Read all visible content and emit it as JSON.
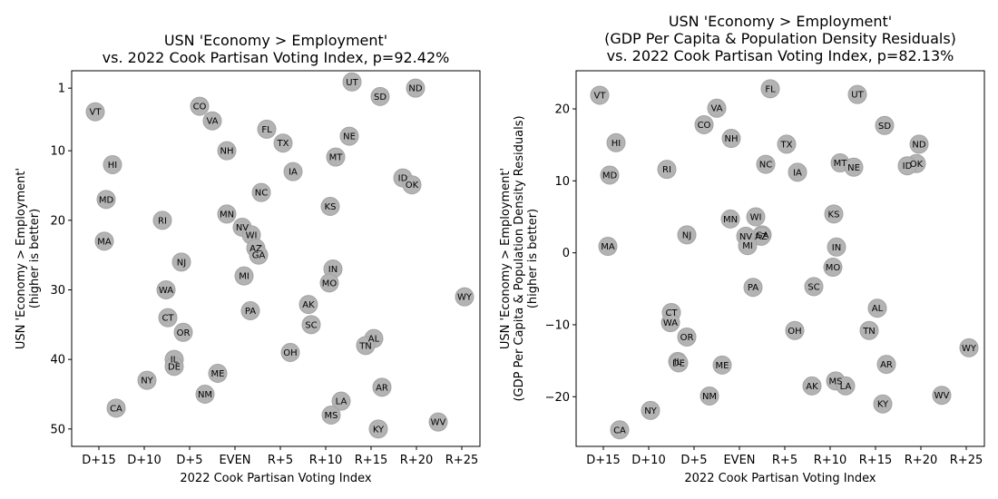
{
  "chart_data": [
    {
      "type": "scatter",
      "title": [
        "USN 'Economy > Employment'",
        "vs. 2022 Cook Partisan Voting Index, p=92.42%"
      ],
      "xlabel": "2022 Cook Partisan Voting Index",
      "ylabel": [
        "USN 'Economy > Employment'",
        "(higher is better)"
      ],
      "xlim": [
        -18,
        27
      ],
      "ylim": [
        52.5,
        -1.5
      ],
      "y_inverted": true,
      "grid": false,
      "x_ticks": [
        {
          "value": -15,
          "label": "D+15"
        },
        {
          "value": -10,
          "label": "D+10"
        },
        {
          "value": -5,
          "label": "D+5"
        },
        {
          "value": 0,
          "label": "EVEN"
        },
        {
          "value": 5,
          "label": "R+5"
        },
        {
          "value": 10,
          "label": "R+10"
        },
        {
          "value": 15,
          "label": "R+15"
        },
        {
          "value": 20,
          "label": "R+20"
        },
        {
          "value": 25,
          "label": "R+25"
        }
      ],
      "y_ticks": [
        {
          "value": 1,
          "label": "1"
        },
        {
          "value": 10,
          "label": "10"
        },
        {
          "value": 20,
          "label": "20"
        },
        {
          "value": 30,
          "label": "30"
        },
        {
          "value": 40,
          "label": "40"
        },
        {
          "value": 50,
          "label": "50"
        }
      ],
      "marker_color": "#b3b3b3",
      "points": [
        {
          "label": "VT",
          "x": -15.4,
          "y": 4.4
        },
        {
          "label": "CO",
          "x": -3.9,
          "y": 3.6
        },
        {
          "label": "VA",
          "x": -2.5,
          "y": 5.7
        },
        {
          "label": "UT",
          "x": 12.9,
          "y": 0.1
        },
        {
          "label": "SD",
          "x": 16.0,
          "y": 2.2
        },
        {
          "label": "ND",
          "x": 19.9,
          "y": 1.0
        },
        {
          "label": "FL",
          "x": 3.5,
          "y": 6.9
        },
        {
          "label": "NE",
          "x": 12.6,
          "y": 7.9
        },
        {
          "label": "TX",
          "x": 5.3,
          "y": 8.9
        },
        {
          "label": "NH",
          "x": -0.9,
          "y": 10.0
        },
        {
          "label": "MT",
          "x": 11.1,
          "y": 10.9
        },
        {
          "label": "HI",
          "x": -13.5,
          "y": 12.0
        },
        {
          "label": "IA",
          "x": 6.4,
          "y": 13.0
        },
        {
          "label": "ID",
          "x": 18.5,
          "y": 13.9
        },
        {
          "label": "OK",
          "x": 19.5,
          "y": 14.9
        },
        {
          "label": "NC",
          "x": 2.9,
          "y": 16.0
        },
        {
          "label": "MD",
          "x": -14.2,
          "y": 17.0
        },
        {
          "label": "KS",
          "x": 10.5,
          "y": 18.0
        },
        {
          "label": "MN",
          "x": -0.9,
          "y": 19.1
        },
        {
          "label": "RI",
          "x": -8.0,
          "y": 20.0
        },
        {
          "label": "NV",
          "x": 0.8,
          "y": 21.0
        },
        {
          "label": "WI",
          "x": 1.8,
          "y": 22.1
        },
        {
          "label": "MA",
          "x": -14.4,
          "y": 23.0
        },
        {
          "label": "AZ",
          "x": 2.3,
          "y": 24.0
        },
        {
          "label": "GA",
          "x": 2.6,
          "y": 25.0
        },
        {
          "label": "NJ",
          "x": -5.9,
          "y": 26.0
        },
        {
          "label": "IN",
          "x": 10.8,
          "y": 27.0
        },
        {
          "label": "MI",
          "x": 1.0,
          "y": 28.0
        },
        {
          "label": "MO",
          "x": 10.4,
          "y": 29.0
        },
        {
          "label": "WA",
          "x": -7.6,
          "y": 30.0
        },
        {
          "label": "WY",
          "x": 25.3,
          "y": 31.0
        },
        {
          "label": "AK",
          "x": 8.1,
          "y": 32.1
        },
        {
          "label": "PA",
          "x": 1.7,
          "y": 33.0
        },
        {
          "label": "CT",
          "x": -7.4,
          "y": 34.0
        },
        {
          "label": "SC",
          "x": 8.4,
          "y": 35.0
        },
        {
          "label": "OR",
          "x": -5.7,
          "y": 36.1
        },
        {
          "label": "AL",
          "x": 15.3,
          "y": 37.0
        },
        {
          "label": "TN",
          "x": 14.4,
          "y": 38.0
        },
        {
          "label": "OH",
          "x": 6.1,
          "y": 39.0
        },
        {
          "label": "IL",
          "x": -6.7,
          "y": 40.0
        },
        {
          "label": "DE",
          "x": -6.7,
          "y": 41.0
        },
        {
          "label": "ME",
          "x": -1.9,
          "y": 42.0
        },
        {
          "label": "NY",
          "x": -9.7,
          "y": 43.0
        },
        {
          "label": "AR",
          "x": 16.2,
          "y": 44.0
        },
        {
          "label": "NM",
          "x": -3.3,
          "y": 45.0
        },
        {
          "label": "LA",
          "x": 11.7,
          "y": 46.0
        },
        {
          "label": "CA",
          "x": -13.1,
          "y": 47.0
        },
        {
          "label": "MS",
          "x": 10.6,
          "y": 48.0
        },
        {
          "label": "WV",
          "x": 22.4,
          "y": 49.0
        },
        {
          "label": "KY",
          "x": 15.8,
          "y": 50.0
        }
      ]
    },
    {
      "type": "scatter",
      "title": [
        "USN 'Economy > Employment'",
        "(GDP Per Capita & Population Density Residuals)",
        "vs. 2022 Cook Partisan Voting Index, p=82.13%"
      ],
      "xlabel": "2022 Cook Partisan Voting Index",
      "ylabel": [
        "USN 'Economy > Employment'",
        "(GDP Per Capita & Population Density Residuals)",
        "(higher is better)"
      ],
      "xlim": [
        -18,
        27
      ],
      "ylim": [
        -26.9,
        25.3
      ],
      "y_inverted": false,
      "grid": false,
      "x_ticks": [
        {
          "value": -15,
          "label": "D+15"
        },
        {
          "value": -10,
          "label": "D+10"
        },
        {
          "value": -5,
          "label": "D+5"
        },
        {
          "value": 0,
          "label": "EVEN"
        },
        {
          "value": 5,
          "label": "R+5"
        },
        {
          "value": 10,
          "label": "R+10"
        },
        {
          "value": 15,
          "label": "R+15"
        },
        {
          "value": 20,
          "label": "R+20"
        },
        {
          "value": 25,
          "label": "R+25"
        }
      ],
      "y_ticks": [
        {
          "value": -20,
          "label": "−20"
        },
        {
          "value": -10,
          "label": "−10"
        },
        {
          "value": 0,
          "label": "0"
        },
        {
          "value": 10,
          "label": "10"
        },
        {
          "value": 20,
          "label": "20"
        }
      ],
      "marker_color": "#b3b3b3",
      "points": [
        {
          "label": "VT",
          "x": -15.4,
          "y": 21.9
        },
        {
          "label": "FL",
          "x": 3.4,
          "y": 22.8
        },
        {
          "label": "UT",
          "x": 13.0,
          "y": 22.0
        },
        {
          "label": "VA",
          "x": -2.5,
          "y": 20.1
        },
        {
          "label": "CO",
          "x": -3.9,
          "y": 17.8
        },
        {
          "label": "SD",
          "x": 16.0,
          "y": 17.7
        },
        {
          "label": "NH",
          "x": -0.9,
          "y": 15.9
        },
        {
          "label": "HI",
          "x": -13.6,
          "y": 15.3
        },
        {
          "label": "TX",
          "x": 5.2,
          "y": 15.1
        },
        {
          "label": "ND",
          "x": 19.8,
          "y": 15.1
        },
        {
          "label": "MT",
          "x": 11.1,
          "y": 12.5
        },
        {
          "label": "NC",
          "x": 2.9,
          "y": 12.3
        },
        {
          "label": "OK",
          "x": 19.5,
          "y": 12.4
        },
        {
          "label": "ID",
          "x": 18.5,
          "y": 12.1
        },
        {
          "label": "NE",
          "x": 12.6,
          "y": 11.9
        },
        {
          "label": "RI",
          "x": -8.0,
          "y": 11.6
        },
        {
          "label": "IA",
          "x": 6.4,
          "y": 11.2
        },
        {
          "label": "MD",
          "x": -14.3,
          "y": 10.8
        },
        {
          "label": "KS",
          "x": 10.4,
          "y": 5.4
        },
        {
          "label": "WI",
          "x": 1.8,
          "y": 5.0
        },
        {
          "label": "MN",
          "x": -1.0,
          "y": 4.7
        },
        {
          "label": "NJ",
          "x": -5.8,
          "y": 2.5
        },
        {
          "label": "GA",
          "x": 2.5,
          "y": 2.5
        },
        {
          "label": "AZ",
          "x": 2.4,
          "y": 2.3
        },
        {
          "label": "NV",
          "x": 0.7,
          "y": 2.3
        },
        {
          "label": "MI",
          "x": 0.9,
          "y": 1.0
        },
        {
          "label": "MA",
          "x": -14.5,
          "y": 0.9
        },
        {
          "label": "IN",
          "x": 10.7,
          "y": 0.8
        },
        {
          "label": "MO",
          "x": 10.3,
          "y": -2.0
        },
        {
          "label": "PA",
          "x": 1.5,
          "y": -4.8
        },
        {
          "label": "SC",
          "x": 8.2,
          "y": -4.7
        },
        {
          "label": "AL",
          "x": 15.2,
          "y": -7.7
        },
        {
          "label": "CT",
          "x": -7.5,
          "y": -8.3
        },
        {
          "label": "WA",
          "x": -7.6,
          "y": -9.7
        },
        {
          "label": "OH",
          "x": 6.1,
          "y": -10.8
        },
        {
          "label": "TN",
          "x": 14.3,
          "y": -10.8
        },
        {
          "label": "OR",
          "x": -5.8,
          "y": -11.7
        },
        {
          "label": "WY",
          "x": 25.3,
          "y": -13.2
        },
        {
          "label": "IL",
          "x": -6.8,
          "y": -15.1
        },
        {
          "label": "DE",
          "x": -6.7,
          "y": -15.3
        },
        {
          "label": "AR",
          "x": 16.2,
          "y": -15.5
        },
        {
          "label": "ME",
          "x": -1.9,
          "y": -15.6
        },
        {
          "label": "MS",
          "x": 10.6,
          "y": -17.8
        },
        {
          "label": "AK",
          "x": 8.0,
          "y": -18.5
        },
        {
          "label": "LA",
          "x": 11.7,
          "y": -18.5
        },
        {
          "label": "NM",
          "x": -3.3,
          "y": -19.9
        },
        {
          "label": "WV",
          "x": 22.3,
          "y": -19.8
        },
        {
          "label": "KY",
          "x": 15.8,
          "y": -21.0
        },
        {
          "label": "NY",
          "x": -9.8,
          "y": -21.9
        },
        {
          "label": "CA",
          "x": -13.2,
          "y": -24.6
        }
      ]
    }
  ]
}
